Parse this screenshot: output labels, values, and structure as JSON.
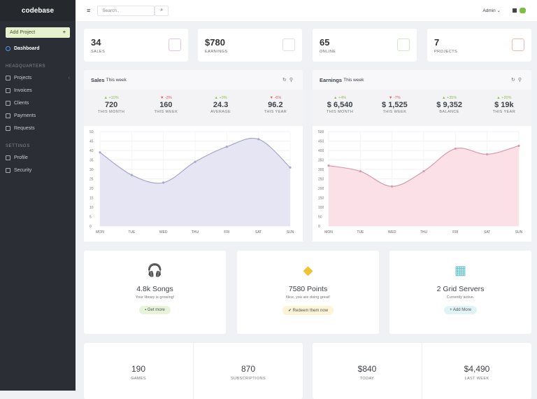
{
  "sidebar": {
    "logo_a": "codebase",
    "add_project": "Add Project",
    "add_icon": "+",
    "dashboard": "Dashboard",
    "sec1": "HEADQUARTERS",
    "items": [
      "Projects",
      "Invoices",
      "Clients",
      "Payments",
      "Requests"
    ],
    "sec2": "SETTINGS",
    "settings": [
      "Profile",
      "Security"
    ]
  },
  "header": {
    "search_placeholder": "Search..",
    "user": "Admin ⌄"
  },
  "stats": [
    {
      "num": "34",
      "label": "SALES",
      "color": "#e7c3e0"
    },
    {
      "num": "$780",
      "label": "EARNINGS",
      "color": "#e0e0e0"
    },
    {
      "num": "65",
      "label": "ONLINE",
      "color": "#cfe6c8"
    },
    {
      "num": "7",
      "label": "PROJECTS",
      "color": "#f0b9b0"
    }
  ],
  "sales": {
    "title": "Sales",
    "sub": "This week",
    "kpis": [
      {
        "d": "▲ +10%",
        "up": true,
        "v": "720",
        "l": "THIS MONTH"
      },
      {
        "d": "▼ -3%",
        "up": false,
        "v": "160",
        "l": "THIS WEEK"
      },
      {
        "d": "▲ +9%",
        "up": true,
        "v": "24.3",
        "l": "AVERAGE"
      },
      {
        "d": "▼ -6%",
        "up": false,
        "v": "96.2",
        "l": "THIS YEAR"
      }
    ]
  },
  "earnings": {
    "title": "Earnings",
    "sub": "This week",
    "kpis": [
      {
        "d": "▲ +4%",
        "up": true,
        "v": "$ 6,540",
        "l": "THIS MONTH"
      },
      {
        "d": "▼ -7%",
        "up": false,
        "v": "$ 1,525",
        "l": "THIS WEEK"
      },
      {
        "d": "▲ +35%",
        "up": true,
        "v": "$ 9,352",
        "l": "BALANCE"
      },
      {
        "d": "▲ +20%",
        "up": true,
        "v": "$ 19k",
        "l": "THIS YEAR"
      }
    ]
  },
  "chart_data": [
    {
      "type": "area",
      "title": "Sales",
      "categories": [
        "MON",
        "TUE",
        "WED",
        "THU",
        "FRI",
        "SAT",
        "SUN"
      ],
      "values": [
        39,
        27,
        23,
        34,
        42,
        46,
        31
      ],
      "ylim": [
        0,
        50
      ],
      "yticks": [
        0,
        5,
        10,
        15,
        20,
        25,
        30,
        35,
        40,
        45,
        50
      ],
      "line": "#a9a7c9",
      "fill": "#e6e5f3"
    },
    {
      "type": "area",
      "title": "Earnings",
      "categories": [
        "MON",
        "TUE",
        "WED",
        "THU",
        "FRI",
        "SAT",
        "SUN"
      ],
      "values": [
        320,
        290,
        210,
        290,
        410,
        380,
        425
      ],
      "ylim": [
        0,
        500
      ],
      "yticks": [
        0,
        50,
        100,
        150,
        200,
        250,
        300,
        350,
        400,
        450,
        500
      ],
      "line": "#d79aae",
      "fill": "#fbe0e8"
    }
  ],
  "widgets": [
    {
      "icon": "🎧",
      "title": "4.8k Songs",
      "sub": "Your library is growing!",
      "btn": "▪ Get more",
      "color": "#9bbf6a",
      "bg": "#e8f4da"
    },
    {
      "icon": "◆",
      "title": "7580 Points",
      "sub": "Nice, you are doing great!",
      "btn": "✔ Redeem them now",
      "color": "#f2c230",
      "bg": "#fdf3d6"
    },
    {
      "icon": "▦",
      "title": "2 Grid Servers",
      "sub": "Currently active.",
      "btn": "+ Add More",
      "color": "#5cc2c8",
      "bg": "#e0f3f6"
    }
  ],
  "bottom": [
    [
      {
        "v": "190",
        "l": "GAMES"
      },
      {
        "v": "870",
        "l": "SUBSCRIPTIONS"
      }
    ],
    [
      {
        "v": "$840",
        "l": "TODAY"
      },
      {
        "v": "$4,490",
        "l": "LAST WEEK"
      }
    ]
  ]
}
